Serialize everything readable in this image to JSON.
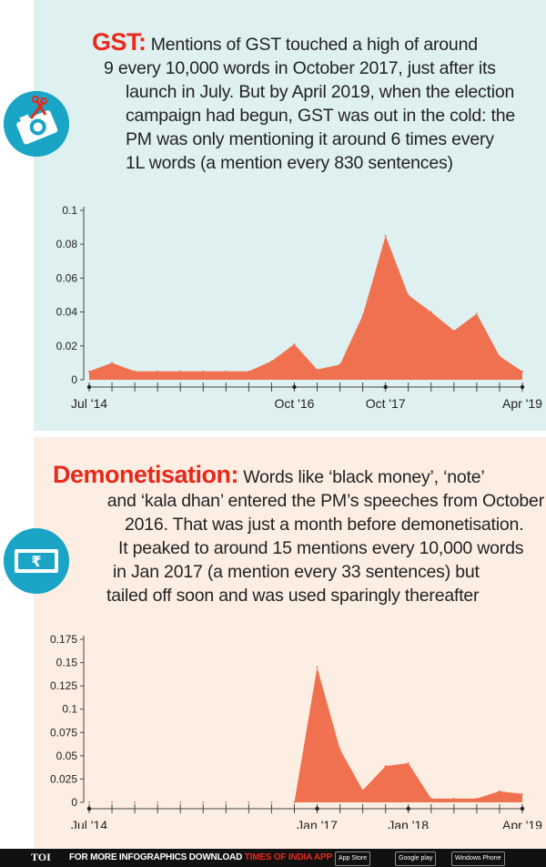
{
  "gst": {
    "keyword": "GST:",
    "lines": [
      "Mentions of GST touched a high of around",
      "9 every 10,000 words in October 2017, just after its",
      "launch in July. But by April 2019, when the election",
      "campaign had begun, GST was out in the cold: the",
      "PM was only mentioning it around 6 times every",
      "1L words (a mention every 830 sentences)"
    ],
    "icon": "camera-icon"
  },
  "demonetisation": {
    "keyword": "Demonetisation:",
    "lines": [
      "Words like ‘black money’, ‘note’",
      "and ‘kala dhan’ entered the PM’s speeches from October",
      "2016. That was just a month before demonetisation.",
      "It peaked to around 15 mentions every 10,000 words",
      "in Jan 2017 (a mention every 33 sentences) but",
      "tailed off soon and was used sparingly thereafter"
    ],
    "icon": "rupee-note-icon"
  },
  "footer": {
    "brand": "TOI",
    "text": "FOR MORE  INFOGRAPHICS DOWNLOAD",
    "app_name": "TIMES OF INDIA  APP",
    "stores": [
      "App Store",
      "Google play",
      "Windows Phone"
    ]
  },
  "colors": {
    "fill": "#f07150",
    "accent": "#e8291c",
    "gst_bg": "#dff0f1",
    "demo_bg": "#fdeee3",
    "icon_bg": "#1aa5c6"
  },
  "chart_data": [
    {
      "type": "area",
      "title": "",
      "x": [
        "Jul '14",
        "Oct '14",
        "Jan '15",
        "Apr '15",
        "Jul '15",
        "Oct '15",
        "Jan '16",
        "Apr '16",
        "Jul '16",
        "Oct '16",
        "Jan '17",
        "Apr '17",
        "Jul '17",
        "Oct '17",
        "Jan '18",
        "Apr '18",
        "Jul '18",
        "Oct '18",
        "Jan '19",
        "Apr '19"
      ],
      "values": [
        0.005,
        0.01,
        0.005,
        0.005,
        0.005,
        0.005,
        0.005,
        0.005,
        0.011,
        0.021,
        0.006,
        0.009,
        0.038,
        0.085,
        0.05,
        0.04,
        0.029,
        0.039,
        0.014,
        0.005
      ],
      "x_tick_labels": [
        "Jul '14",
        "Oct '16",
        "Oct '17",
        "Apr '19"
      ],
      "y_ticks": [
        "0",
        "0.02",
        "0.04",
        "0.06",
        "0.08",
        "0.1"
      ],
      "ylim": [
        0,
        0.1
      ],
      "grid": false
    },
    {
      "type": "area",
      "title": "",
      "x": [
        "Jul '14",
        "Oct '14",
        "Jan '15",
        "Apr '15",
        "Jul '15",
        "Oct '15",
        "Jan '16",
        "Apr '16",
        "Jul '16",
        "Oct '16",
        "Jan '17",
        "Apr '17",
        "Jul '17",
        "Oct '17",
        "Jan '18",
        "Apr '18",
        "Jul '18",
        "Oct '18",
        "Jan '19",
        "Apr '19"
      ],
      "values": [
        0,
        0,
        0,
        0,
        0,
        0,
        0,
        0,
        0,
        0,
        0.145,
        0.057,
        0.013,
        0.039,
        0.042,
        0.004,
        0.004,
        0.004,
        0.012,
        0.009
      ],
      "x_tick_labels": [
        "Jul '14",
        "Jan '17",
        "Jan '18",
        "Apr '19"
      ],
      "y_ticks": [
        "0",
        "0.025",
        "0.05",
        "0.075",
        "0.1",
        "0.125",
        "0.15",
        "0.175"
      ],
      "ylim": [
        0,
        0.175
      ],
      "grid": false
    }
  ]
}
